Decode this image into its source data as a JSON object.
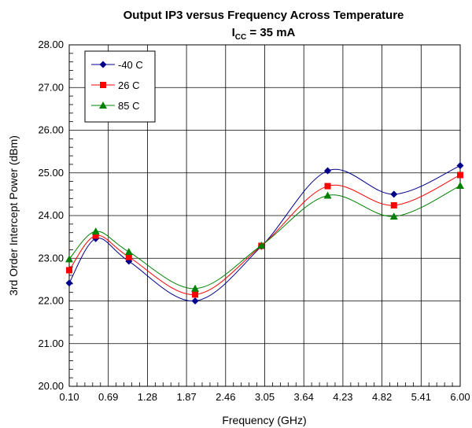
{
  "chart_data": {
    "type": "line",
    "title": "Output IP3 versus Frequency Across Temperature",
    "subtitle": {
      "prefix": "I",
      "subscript": "CC",
      "suffix": " = 35 mA"
    },
    "xlabel": "Frequency (GHz)",
    "ylabel": "3rd Order Intercept Power (dBm)",
    "xlim": [
      0.1,
      6.0
    ],
    "ylim": [
      20.0,
      28.0
    ],
    "xticks": [
      "0.10",
      "0.69",
      "1.28",
      "1.87",
      "2.46",
      "3.05",
      "3.64",
      "4.23",
      "4.82",
      "5.41",
      "6.00"
    ],
    "yticks": [
      "20.00",
      "21.00",
      "22.00",
      "23.00",
      "24.00",
      "25.00",
      "26.00",
      "27.00",
      "28.00"
    ],
    "grid": true,
    "legend_position": "top-left",
    "x": [
      0.1,
      0.5,
      1.0,
      2.0,
      3.0,
      4.0,
      5.0,
      6.0
    ],
    "series": [
      {
        "name": "-40 C",
        "color": "#00008B",
        "marker": "diamond",
        "values": [
          22.42,
          23.46,
          22.93,
          22.0,
          23.28,
          25.05,
          24.5,
          25.17
        ]
      },
      {
        "name": "26 C",
        "color": "#FF0000",
        "marker": "square",
        "values": [
          22.72,
          23.53,
          23.03,
          22.15,
          23.29,
          24.69,
          24.24,
          24.95
        ]
      },
      {
        "name": "85 C",
        "color": "#008000",
        "marker": "triangle",
        "values": [
          22.98,
          23.63,
          23.15,
          22.29,
          23.3,
          24.47,
          23.98,
          24.7
        ]
      }
    ]
  }
}
